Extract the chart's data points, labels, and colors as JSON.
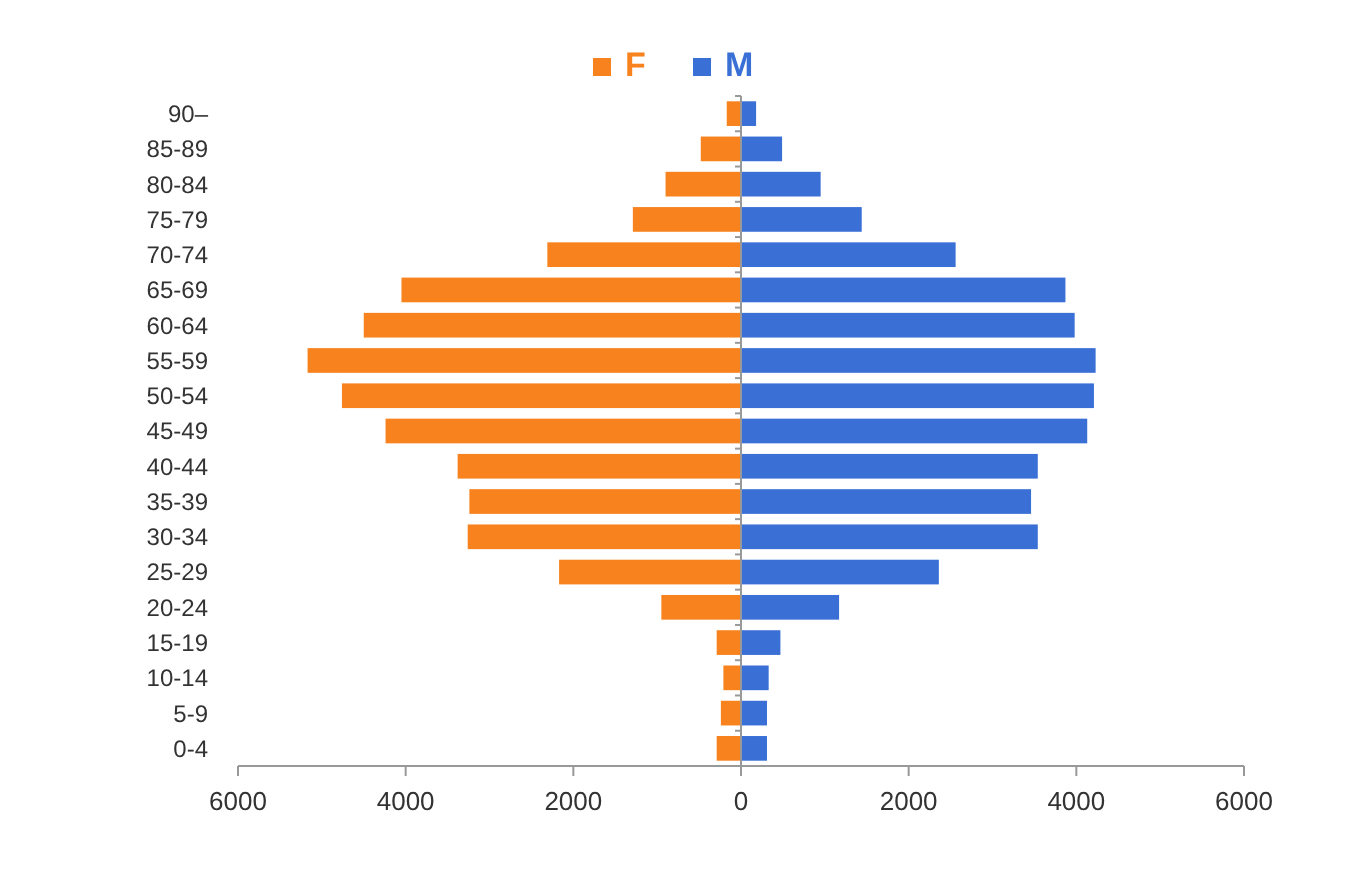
{
  "chart_data": {
    "type": "bar",
    "orientation": "horizontal",
    "stacked": true,
    "legend": "top",
    "categories": [
      "90–",
      "85-89",
      "80-84",
      "75-79",
      "70-74",
      "65-69",
      "60-64",
      "55-59",
      "50-54",
      "45-49",
      "40-44",
      "35-39",
      "30-34",
      "25-29",
      "20-24",
      "15-19",
      "10-14",
      "5-9",
      "0-4"
    ],
    "series": [
      {
        "name": "F",
        "color": "#f7821e",
        "values": [
          -170,
          -480,
          -900,
          -1290,
          -2310,
          -4050,
          -4500,
          -5170,
          -4760,
          -4240,
          -3380,
          -3240,
          -3260,
          -2170,
          -950,
          -290,
          -210,
          -240,
          -290
        ]
      },
      {
        "name": "M",
        "color": "#3a6fd6",
        "values": [
          180,
          490,
          950,
          1440,
          2560,
          3870,
          3980,
          4230,
          4210,
          4130,
          3540,
          3460,
          3540,
          2360,
          1170,
          470,
          330,
          310,
          310
        ]
      }
    ],
    "xlim": [
      -6000,
      6000
    ],
    "xticks": [
      {
        "value": -6000,
        "label": "6000"
      },
      {
        "value": -4000,
        "label": "4000"
      },
      {
        "value": -2000,
        "label": "2000"
      },
      0,
      2000,
      4000,
      6000
    ]
  }
}
